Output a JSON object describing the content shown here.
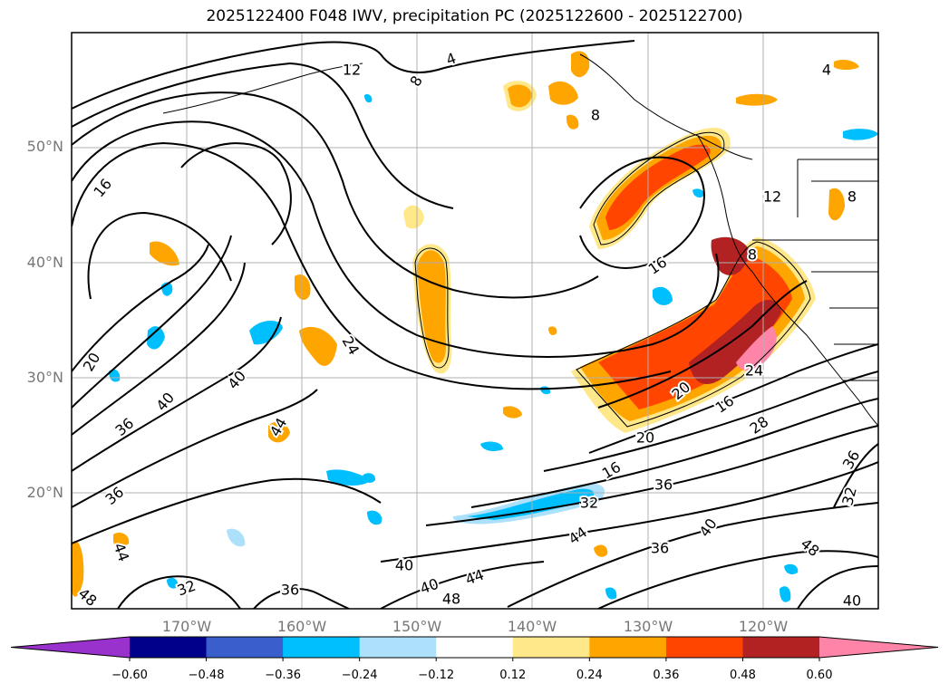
{
  "title": "2025122400 F048 IWV, precipitation PC (2025122600 - 2025122700)",
  "lat_labels": [
    "50°N",
    "40°N",
    "30°N",
    "20°N"
  ],
  "lon_labels": [
    "170°W",
    "160°W",
    "150°W",
    "140°W",
    "130°W",
    "120°W"
  ],
  "colorbar": {
    "ticks": [
      "−0.60",
      "−0.48",
      "−0.36",
      "−0.24",
      "−0.12",
      "0.12",
      "0.24",
      "0.36",
      "0.48",
      "0.60"
    ],
    "colors": [
      "#9932CC",
      "#00008B",
      "#3A5FCD",
      "#00BFFF",
      "#ADE0FA",
      "#FFFFFF",
      "#FFE88A",
      "#FFA500",
      "#FF4500",
      "#B22222",
      "#FF85A8"
    ]
  },
  "contour_labels": [
    {
      "text": "4"
    },
    {
      "text": "12"
    },
    {
      "text": "8"
    },
    {
      "text": "4"
    },
    {
      "text": "8"
    },
    {
      "text": "16"
    },
    {
      "text": "12"
    },
    {
      "text": "8"
    },
    {
      "text": "8"
    },
    {
      "text": "16"
    },
    {
      "text": "24"
    },
    {
      "text": "20"
    },
    {
      "text": "40"
    },
    {
      "text": "40"
    },
    {
      "text": "36"
    },
    {
      "text": "44"
    },
    {
      "text": "20"
    },
    {
      "text": "16"
    },
    {
      "text": "28"
    },
    {
      "text": "20"
    },
    {
      "text": "24"
    },
    {
      "text": "16"
    },
    {
      "text": "36"
    },
    {
      "text": "32"
    },
    {
      "text": "36"
    },
    {
      "text": "32"
    },
    {
      "text": "36"
    },
    {
      "text": "44"
    },
    {
      "text": "40"
    },
    {
      "text": "36"
    },
    {
      "text": "44"
    },
    {
      "text": "48"
    },
    {
      "text": "40"
    },
    {
      "text": "32"
    },
    {
      "text": "36"
    },
    {
      "text": "40"
    },
    {
      "text": "40"
    },
    {
      "text": "44"
    },
    {
      "text": "48"
    },
    {
      "text": "48"
    }
  ]
}
